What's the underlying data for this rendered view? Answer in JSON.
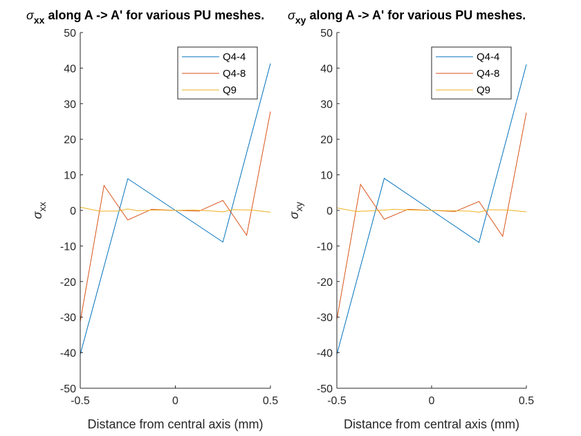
{
  "figure": {
    "colors": {
      "axis": "#262626",
      "background": "#ffffff",
      "series": [
        "#0072bd",
        "#d95319",
        "#edb120"
      ]
    }
  },
  "chart_data": [
    {
      "type": "line",
      "title_symbol": "σ",
      "title_sub": "xx",
      "title_text": " along A -> A' for various PU meshes.",
      "ylabel_symbol": "σ",
      "ylabel_sub": "xx",
      "xlabel": "Distance from central axis (mm)",
      "xlim": [
        -0.5,
        0.5
      ],
      "ylim": [
        -50,
        50
      ],
      "xticks": [
        -0.5,
        0,
        0.5
      ],
      "xtick_labels": [
        "-0.5",
        "0",
        "0.5"
      ],
      "yticks": [
        -50,
        -40,
        -30,
        -20,
        -10,
        0,
        10,
        20,
        30,
        40,
        50
      ],
      "ytick_labels": [
        "-50",
        "-40",
        "-30",
        "-20",
        "-10",
        "0",
        "10",
        "20",
        "30",
        "40",
        "50"
      ],
      "grid": false,
      "legend_position": "top-right",
      "series": [
        {
          "name": "Q4-4",
          "x": [
            -0.5,
            -0.25,
            0,
            0.25,
            0.5
          ],
          "y": [
            -40.5,
            8.9,
            0,
            -8.9,
            41.3
          ]
        },
        {
          "name": "Q4-8",
          "x": [
            -0.5,
            -0.375,
            -0.25,
            -0.125,
            0,
            0.125,
            0.25,
            0.375,
            0.5
          ],
          "y": [
            -31.3,
            7.0,
            -2.7,
            0.3,
            0,
            -0.2,
            2.8,
            -7.0,
            27.8
          ]
        },
        {
          "name": "Q9",
          "x": [
            -0.5,
            -0.4,
            -0.3,
            -0.25,
            -0.2,
            -0.1,
            0,
            0.1,
            0.2,
            0.25,
            0.3,
            0.4,
            0.5
          ],
          "y": [
            0.9,
            -0.2,
            -0.2,
            0.4,
            -0.1,
            0.1,
            0,
            0.1,
            -0.2,
            -0.4,
            0.2,
            0.1,
            -0.5
          ]
        }
      ]
    },
    {
      "type": "line",
      "title_symbol": "σ",
      "title_sub": "xy",
      "title_text": " along A -> A' for various PU meshes.",
      "ylabel_symbol": "σ",
      "ylabel_sub": "xy",
      "xlabel": "Distance from central axis (mm)",
      "xlim": [
        -0.5,
        0.5
      ],
      "ylim": [
        -50,
        50
      ],
      "xticks": [
        -0.5,
        0,
        0.5
      ],
      "xtick_labels": [
        "-0.5",
        "0",
        "0.5"
      ],
      "yticks": [
        -50,
        -40,
        -30,
        -20,
        -10,
        0,
        10,
        20,
        30,
        40,
        50
      ],
      "ytick_labels": [
        "-50",
        "-40",
        "-30",
        "-20",
        "-10",
        "0",
        "10",
        "20",
        "30",
        "40",
        "50"
      ],
      "grid": false,
      "legend_position": "top-right",
      "series": [
        {
          "name": "Q4-4",
          "x": [
            -0.5,
            -0.25,
            0,
            0.25,
            0.5
          ],
          "y": [
            -40.5,
            9.0,
            0,
            -9.0,
            41.0
          ]
        },
        {
          "name": "Q4-8",
          "x": [
            -0.5,
            -0.375,
            -0.25,
            -0.125,
            0,
            0.125,
            0.25,
            0.375,
            0.5
          ],
          "y": [
            -30.7,
            7.3,
            -2.5,
            0.3,
            0,
            -0.3,
            2.5,
            -7.3,
            27.5
          ]
        },
        {
          "name": "Q9",
          "x": [
            -0.5,
            -0.4,
            -0.3,
            -0.2,
            -0.1,
            0,
            0.1,
            0.2,
            0.25,
            0.3,
            0.4,
            0.5
          ],
          "y": [
            0.7,
            -0.3,
            -0.1,
            0.3,
            0.1,
            0,
            -0.1,
            -0.2,
            -0.5,
            0.2,
            0.1,
            -0.4
          ]
        }
      ]
    }
  ]
}
